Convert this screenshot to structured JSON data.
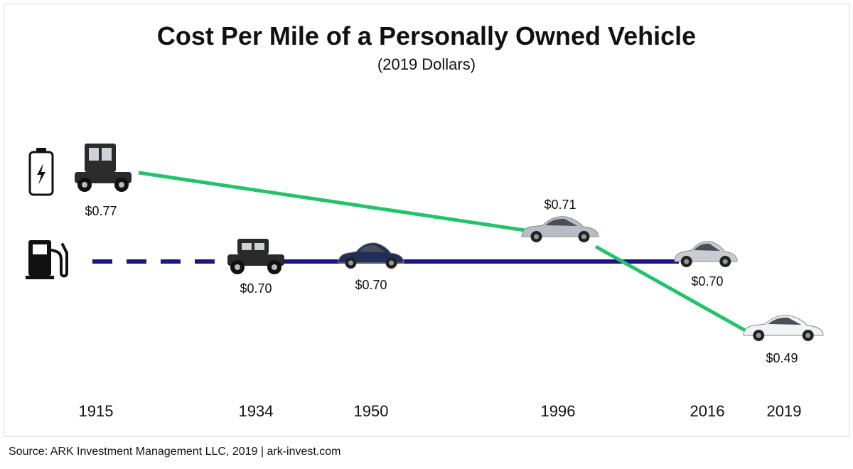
{
  "chart_data": {
    "type": "line",
    "title": "Cost Per Mile of a Personally Owned Vehicle",
    "subtitle": "(2019 Dollars)",
    "x": [
      "1915",
      "1934",
      "1950",
      "1996",
      "2016",
      "2019"
    ],
    "series": [
      {
        "icon": "battery-icon",
        "color": "#22c36b",
        "style": "solid",
        "points": [
          {
            "x": "1915",
            "y": 0.77,
            "label": "$0.77",
            "vehicle": "vintage-electric-car-icon"
          },
          {
            "x": "1996",
            "y": 0.71,
            "label": "$0.71",
            "vehicle": "ev1-car-icon"
          },
          {
            "x": "2019",
            "y": 0.49,
            "label": "$0.49",
            "vehicle": "modern-electric-sedan-icon"
          }
        ]
      },
      {
        "icon": "gas-pump-icon",
        "color": "#1c1680",
        "style": "dashed-then-solid",
        "points": [
          {
            "x": "1915",
            "y": 0.7,
            "label": ""
          },
          {
            "x": "1934",
            "y": 0.7,
            "label": "$0.70",
            "vehicle": "model-a-roadster-icon"
          },
          {
            "x": "1950",
            "y": 0.7,
            "label": "$0.70",
            "vehicle": "1950s-sedan-icon"
          },
          {
            "x": "2016",
            "y": 0.7,
            "label": "$0.70",
            "vehicle": "modern-sedan-icon"
          }
        ]
      }
    ],
    "grid": false,
    "legend": "left-icons"
  },
  "source": "Source: ARK Investment Management LLC, 2019 | ark-invest.com"
}
